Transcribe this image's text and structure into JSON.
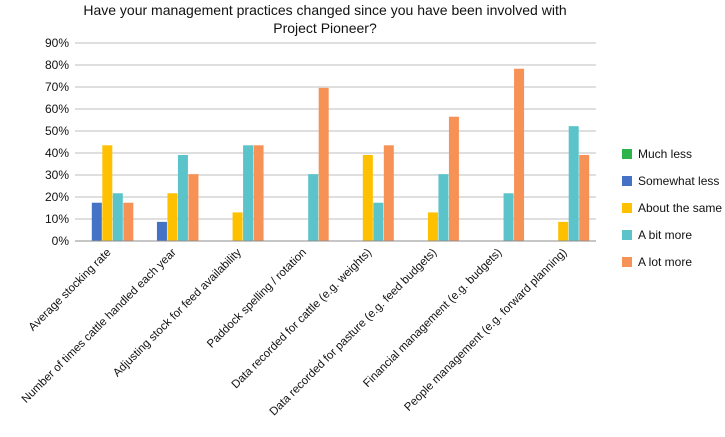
{
  "chart_data": {
    "type": "bar",
    "title": "Have your management practices changed since you have been involved with Project Pioneer?",
    "xlabel": "",
    "ylabel": "",
    "ylim": [
      0,
      90
    ],
    "y_ticks": [
      "0%",
      "10%",
      "20%",
      "30%",
      "40%",
      "50%",
      "60%",
      "70%",
      "80%",
      "90%"
    ],
    "grid": true,
    "legend_position": "right",
    "categories": [
      "Average stocking rate",
      "Number of times cattle handled each year",
      "Adjusting stock for feed availability",
      "Paddock spelling / rotation",
      "Data recorded for cattle (e.g. weights)",
      "Data recorded for pasture (e.g. feed budgets)",
      "Financial management (e.g. budgets)",
      "People management (e.g. forward planning)"
    ],
    "series": [
      {
        "name": "Much less",
        "color": "#2DB34A",
        "values": [
          0,
          0,
          0,
          0,
          0,
          0,
          0,
          0
        ]
      },
      {
        "name": "Somewhat less",
        "color": "#4472C4",
        "values": [
          17.4,
          8.7,
          0,
          0,
          0,
          0,
          0,
          0
        ]
      },
      {
        "name": "About the same",
        "color": "#FFC000",
        "values": [
          43.5,
          21.7,
          13,
          0,
          39.1,
          13,
          0,
          8.7
        ]
      },
      {
        "name": "A bit more",
        "color": "#5BC4CA",
        "values": [
          21.7,
          39.1,
          43.5,
          30.4,
          17.4,
          30.4,
          21.7,
          52.2
        ]
      },
      {
        "name": "A lot more",
        "color": "#F79256",
        "values": [
          17.4,
          30.4,
          43.5,
          69.6,
          43.5,
          56.5,
          78.3,
          39.1
        ]
      }
    ]
  }
}
